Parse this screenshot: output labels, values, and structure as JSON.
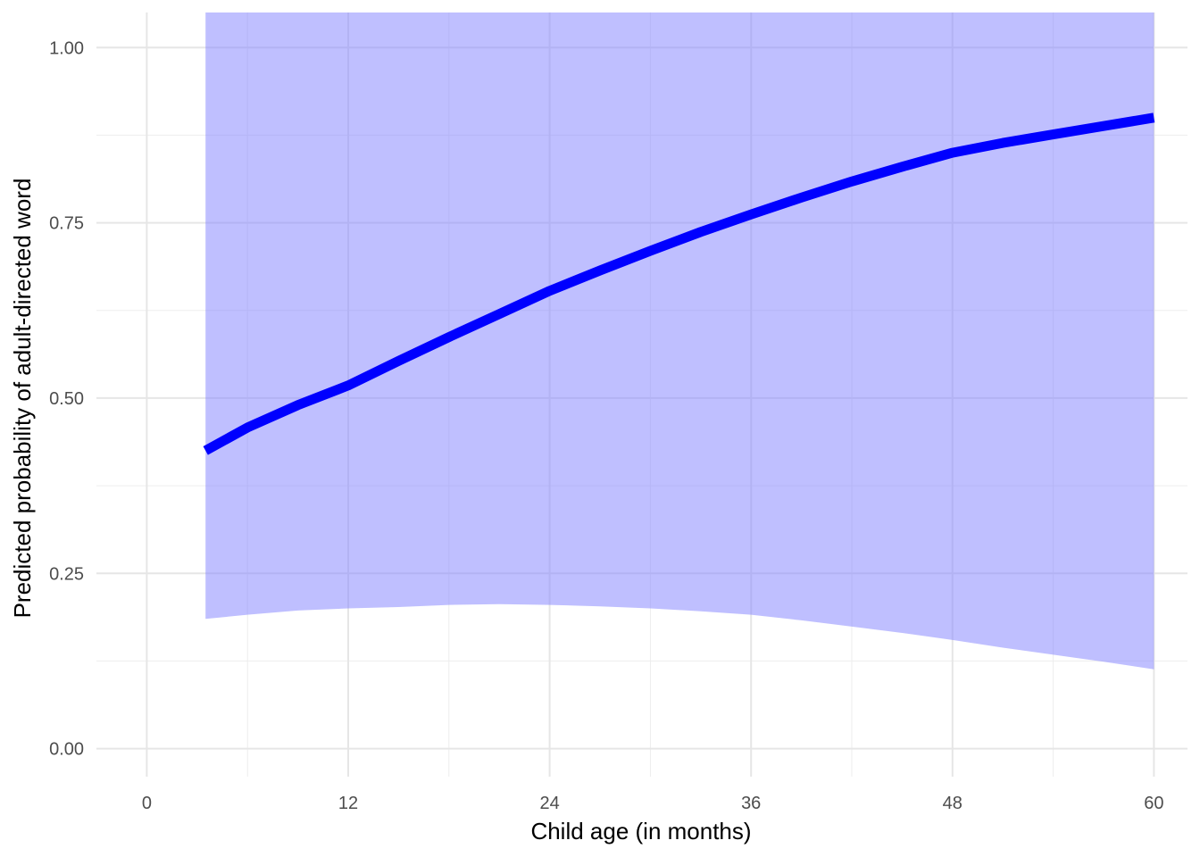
{
  "chart_data": {
    "type": "line",
    "title": "",
    "xlabel": "Child age (in months)",
    "ylabel": "Predicted probability of adult-directed word",
    "xlim": [
      -3,
      62
    ],
    "ylim": [
      -0.04,
      1.05
    ],
    "x_ticks": [
      0,
      12,
      24,
      36,
      48,
      60
    ],
    "x_tick_labels": [
      "0",
      "12",
      "24",
      "36",
      "48",
      "60"
    ],
    "x_minor_ticks": [
      6,
      18,
      30,
      42,
      54
    ],
    "y_ticks": [
      0,
      0.25,
      0.5,
      0.75,
      1.0
    ],
    "y_tick_labels": [
      "0.00",
      "0.25",
      "0.50",
      "0.75",
      "1.00"
    ],
    "y_minor_ticks": [
      0.125,
      0.375,
      0.625,
      0.875
    ],
    "grid": true,
    "legend": "none",
    "series": [
      {
        "x": [
          3.5,
          6,
          9,
          12,
          15,
          18,
          21,
          24,
          27,
          30,
          33,
          36,
          39,
          42,
          45,
          48,
          51,
          54,
          57,
          60
        ],
        "y": [
          0.425,
          0.458,
          0.49,
          0.518,
          0.553,
          0.587,
          0.62,
          0.653,
          0.682,
          0.71,
          0.737,
          0.762,
          0.786,
          0.809,
          0.83,
          0.85,
          0.864,
          0.876,
          0.888,
          0.9
        ],
        "lower": [
          0.185,
          0.191,
          0.197,
          0.2,
          0.202,
          0.205,
          0.206,
          0.205,
          0.203,
          0.2,
          0.196,
          0.191,
          0.183,
          0.174,
          0.165,
          0.155,
          0.144,
          0.134,
          0.124,
          0.113
        ],
        "upper": [
          1.05,
          1.05,
          1.05,
          1.05,
          1.05,
          1.05,
          1.05,
          1.05,
          1.05,
          1.05,
          1.05,
          1.05,
          1.05,
          1.05,
          1.05,
          1.05,
          1.05,
          1.05,
          1.05,
          1.05
        ],
        "line_color": "#0000ff",
        "ribbon_color": "#8080ff",
        "ribbon_opacity": 0.5
      }
    ]
  }
}
